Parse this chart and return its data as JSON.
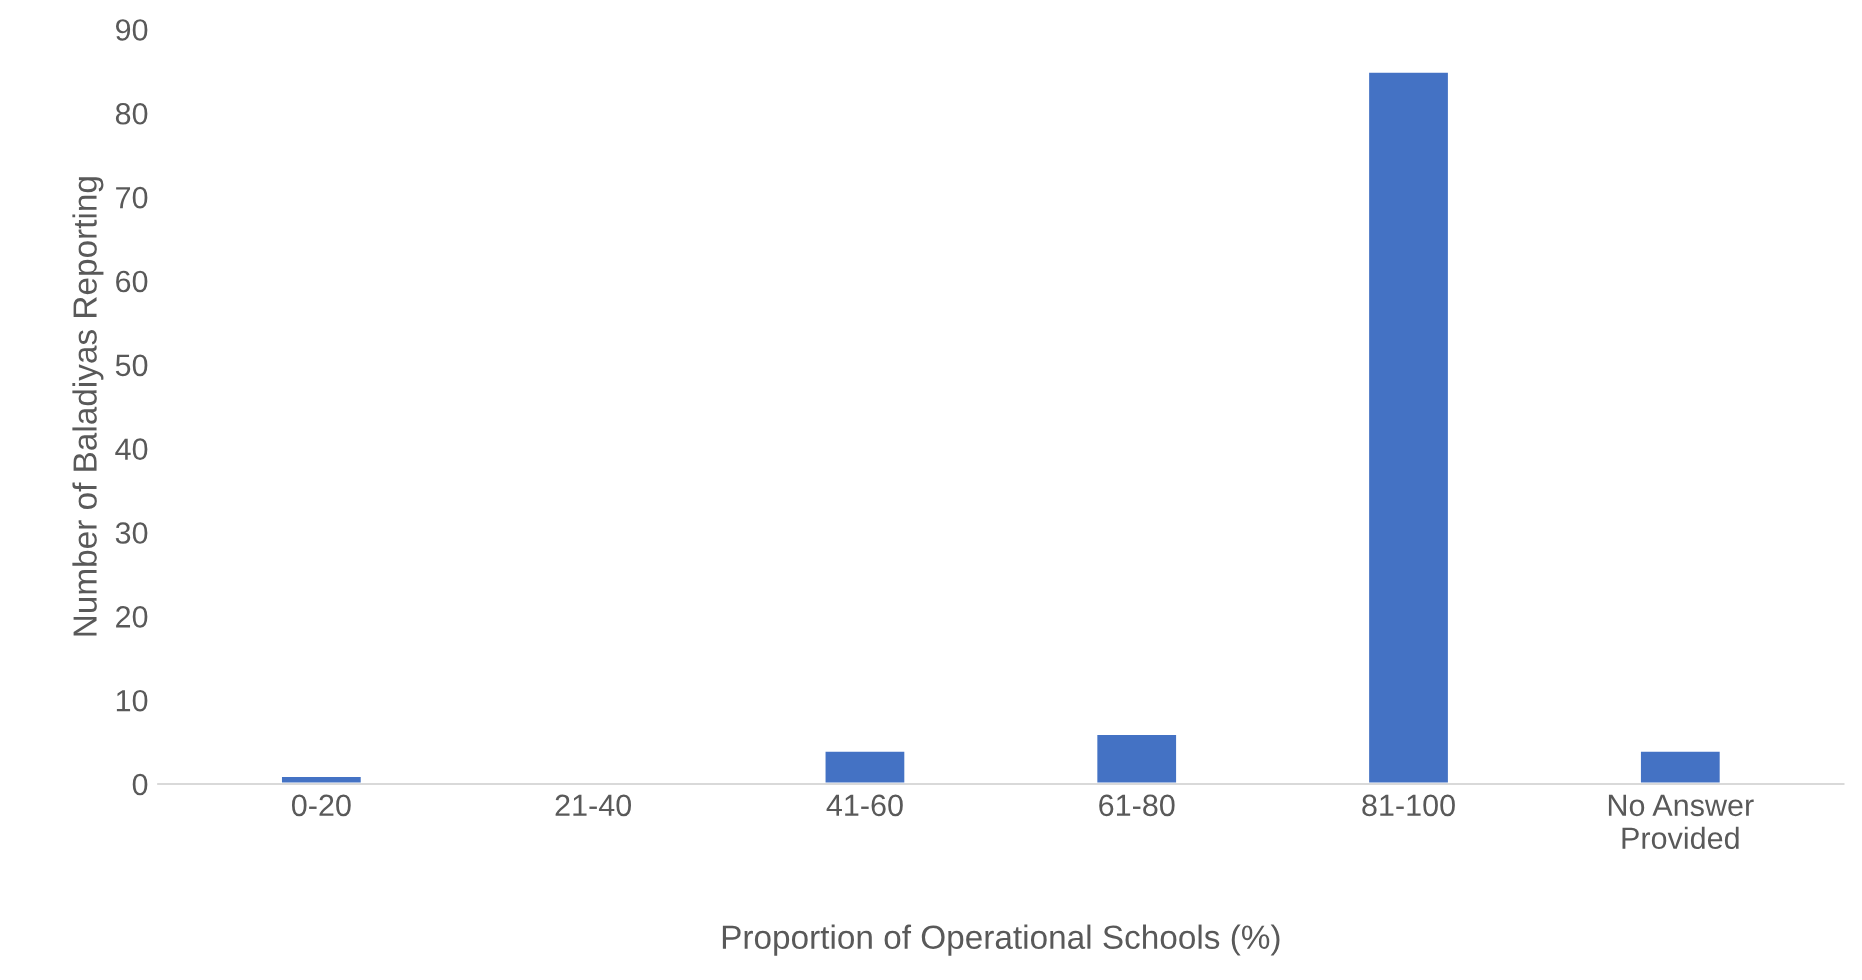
{
  "chart_data": {
    "type": "bar",
    "xlabel": "Proportion of Operational Schools (%)",
    "ylabel": "Number of Baladiyas Reporting",
    "categories": [
      "0-20",
      "21-40",
      "41-60",
      "61-80",
      "81-100",
      "No Answer\nProvided"
    ],
    "values": [
      1,
      null,
      4,
      6,
      85,
      4
    ],
    "color": "#4472c4",
    "ylim": [
      0,
      90
    ],
    "yticks": [
      0,
      10,
      20,
      30,
      40,
      50,
      60,
      70,
      80,
      90
    ],
    "grid": false,
    "legend": false
  }
}
